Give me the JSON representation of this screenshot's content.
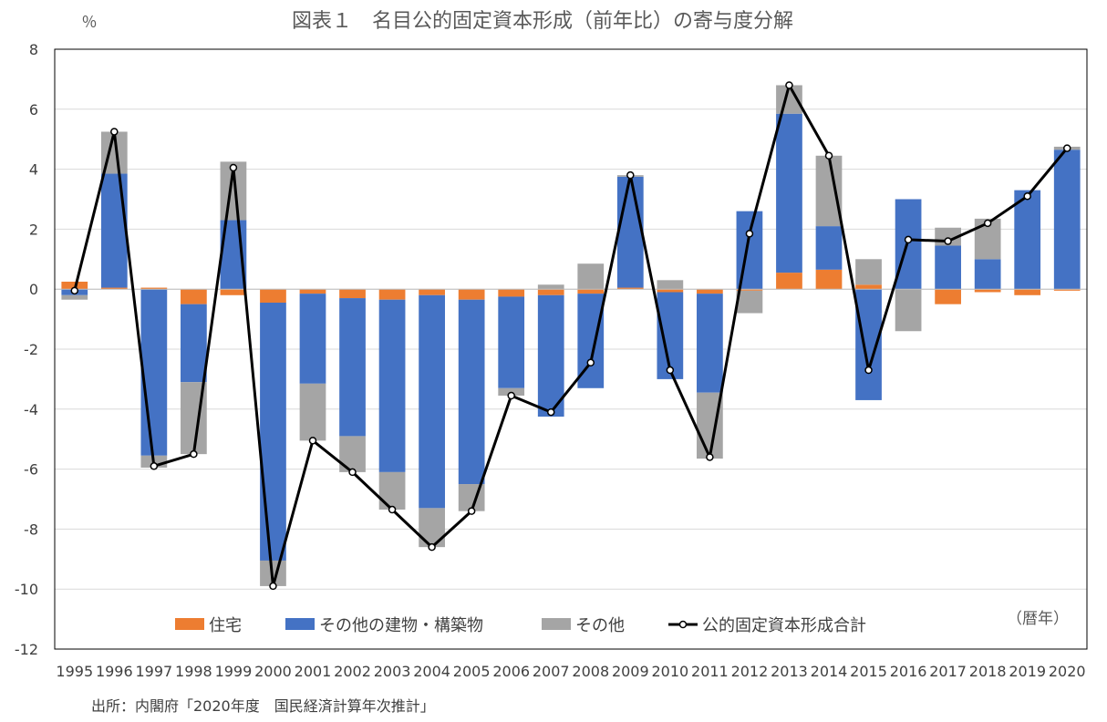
{
  "chart_data": {
    "type": "bar",
    "stacked": true,
    "title": "図表１　名目公的固定資本形成（前年比）の寄与度分解",
    "ylabel": "％",
    "xlabel": "",
    "period_note": "（暦年）",
    "source": "出所：内閣府「2020年度　国民経済計算年次推計」",
    "ylim": [
      -12,
      8
    ],
    "yticks": [
      8,
      6,
      4,
      2,
      0,
      -2,
      -4,
      -6,
      -8,
      -10,
      -12
    ],
    "grid": true,
    "legend_position": "bottom-inside",
    "categories": [
      "1995",
      "1996",
      "1997",
      "1998",
      "1999",
      "2000",
      "2001",
      "2002",
      "2003",
      "2004",
      "2005",
      "2006",
      "2007",
      "2008",
      "2009",
      "2010",
      "2011",
      "2012",
      "2013",
      "2014",
      "2015",
      "2016",
      "2017",
      "2018",
      "2019",
      "2020"
    ],
    "series": [
      {
        "name": "住宅",
        "type": "bar",
        "color": "#ED7D31",
        "values": [
          0.25,
          0.05,
          0.05,
          -0.5,
          -0.2,
          -0.45,
          -0.15,
          -0.3,
          -0.35,
          -0.2,
          -0.35,
          -0.25,
          -0.2,
          -0.15,
          0.05,
          -0.1,
          -0.15,
          -0.05,
          0.55,
          0.65,
          0.15,
          0.0,
          -0.5,
          -0.1,
          -0.2,
          -0.05
        ]
      },
      {
        "name": "その他の建物・構築物",
        "type": "bar",
        "color": "#4472C4",
        "values": [
          -0.2,
          3.8,
          -5.55,
          -2.6,
          2.3,
          -8.6,
          -3.0,
          -4.6,
          -5.75,
          -7.1,
          -6.15,
          -3.05,
          -4.05,
          -3.15,
          3.7,
          -2.9,
          -3.3,
          2.6,
          5.3,
          1.45,
          -3.7,
          3.0,
          1.45,
          1.0,
          3.3,
          4.65
        ]
      },
      {
        "name": "その他",
        "type": "bar",
        "color": "#A5A5A5",
        "values": [
          -0.15,
          1.4,
          -0.4,
          -2.4,
          1.95,
          -0.85,
          -1.9,
          -1.2,
          -1.25,
          -1.3,
          -0.9,
          -0.25,
          0.15,
          0.85,
          0.05,
          0.3,
          -2.2,
          -0.75,
          0.95,
          2.35,
          0.85,
          -1.4,
          0.6,
          1.35,
          0.0,
          0.1
        ]
      },
      {
        "name": "公的固定資本形成合計",
        "type": "line",
        "color": "#000000",
        "values": [
          -0.05,
          5.25,
          -5.9,
          -5.5,
          4.05,
          -9.9,
          -5.05,
          -6.1,
          -7.35,
          -8.6,
          -7.4,
          -3.55,
          -4.1,
          -2.45,
          3.8,
          -2.7,
          -5.6,
          1.85,
          6.8,
          4.45,
          -2.7,
          1.65,
          1.6,
          2.2,
          3.1,
          4.7
        ]
      }
    ]
  }
}
